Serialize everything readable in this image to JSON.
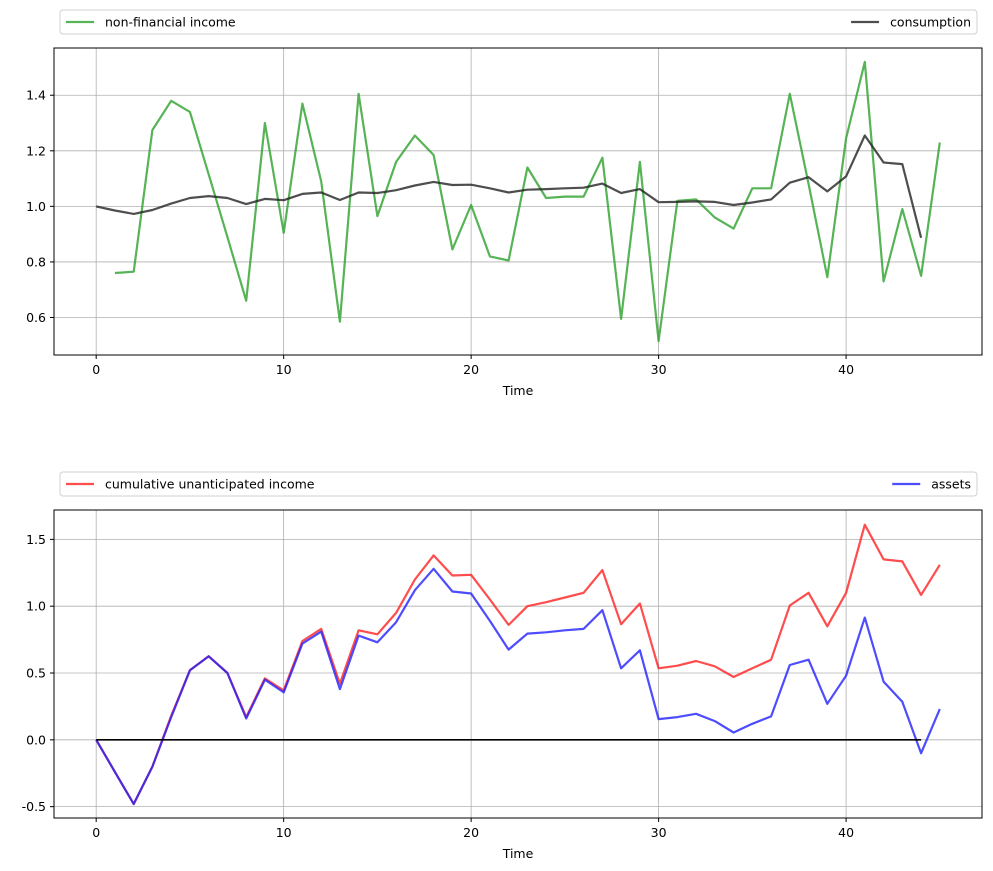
{
  "chart_data": [
    {
      "type": "line",
      "xlabel": "Time",
      "ylabel": "",
      "xlim": [
        -2.25,
        47.25
      ],
      "ylim": [
        0.465,
        1.57
      ],
      "xticks": [
        0,
        10,
        20,
        30,
        40
      ],
      "yticks": [
        0.6,
        0.8,
        1.0,
        1.2,
        1.4
      ],
      "grid": true,
      "legend_placement": "top (above axes, expanded)",
      "series": [
        {
          "name": "non-financial income",
          "color": "#2ca02c",
          "x_start": 1,
          "values": [
            0.76,
            0.765,
            1.275,
            1.38,
            1.34,
            1.115,
            0.89,
            0.66,
            1.3,
            0.905,
            1.37,
            1.09,
            0.585,
            1.405,
            0.965,
            1.16,
            1.255,
            1.185,
            0.845,
            1.005,
            0.82,
            0.805,
            1.14,
            1.03,
            1.035,
            1.035,
            1.175,
            0.595,
            1.16,
            0.515,
            1.02,
            1.025,
            0.96,
            0.92,
            1.065,
            1.065,
            1.405,
            1.08,
            0.745,
            1.245,
            1.52,
            0.73,
            0.99,
            0.75,
            1.23
          ]
        },
        {
          "name": "consumption",
          "color": "#222222",
          "x_start": 0,
          "values": [
            1.0,
            0.985,
            0.973,
            0.987,
            1.01,
            1.03,
            1.037,
            1.03,
            1.008,
            1.027,
            1.022,
            1.045,
            1.05,
            1.023,
            1.05,
            1.048,
            1.058,
            1.075,
            1.088,
            1.077,
            1.078,
            1.065,
            1.05,
            1.06,
            1.062,
            1.065,
            1.067,
            1.082,
            1.048,
            1.062,
            1.015,
            1.016,
            1.018,
            1.016,
            1.005,
            1.014,
            1.025,
            1.085,
            1.105,
            1.054,
            1.108,
            1.255,
            1.158,
            1.152,
            0.887
          ]
        }
      ]
    },
    {
      "type": "line",
      "xlabel": "Time",
      "ylabel": "",
      "xlim": [
        -2.25,
        47.25
      ],
      "ylim": [
        -0.585,
        1.72
      ],
      "xticks": [
        0,
        10,
        20,
        30,
        40
      ],
      "yticks": [
        -0.5,
        0.0,
        0.5,
        1.0,
        1.5
      ],
      "grid": true,
      "legend_placement": "top (above axes, expanded)",
      "series": [
        {
          "name": "cumulative unanticipated income",
          "color": "#ff2020",
          "x_start": 0,
          "values": [
            0,
            -0.24,
            -0.48,
            -0.2,
            0.18,
            0.52,
            0.625,
            0.5,
            0.17,
            0.46,
            0.37,
            0.74,
            0.83,
            0.42,
            0.82,
            0.79,
            0.95,
            1.2,
            1.38,
            1.23,
            1.235,
            1.05,
            0.86,
            1.0,
            1.03,
            1.065,
            1.1,
            1.27,
            0.865,
            1.02,
            0.535,
            0.555,
            0.59,
            0.55,
            0.47,
            0.535,
            0.6,
            1.005,
            1.1,
            0.85,
            1.1,
            1.61,
            1.35,
            1.335,
            1.085,
            1.31
          ]
        },
        {
          "name": "assets",
          "color": "#2020ff",
          "x_start": 0,
          "values": [
            0,
            -0.24,
            -0.48,
            -0.2,
            0.17,
            0.52,
            0.625,
            0.5,
            0.16,
            0.45,
            0.355,
            0.72,
            0.81,
            0.38,
            0.78,
            0.73,
            0.88,
            1.12,
            1.28,
            1.11,
            1.095,
            0.89,
            0.675,
            0.795,
            0.805,
            0.82,
            0.83,
            0.97,
            0.535,
            0.67,
            0.155,
            0.17,
            0.195,
            0.14,
            0.055,
            0.12,
            0.175,
            0.56,
            0.6,
            0.27,
            0.48,
            0.915,
            0.435,
            0.285,
            -0.1,
            0.23
          ]
        },
        {
          "color": "#000000",
          "x_start": 0,
          "values": [
            0,
            0,
            0,
            0,
            0,
            0,
            0,
            0,
            0,
            0,
            0,
            0,
            0,
            0,
            0,
            0,
            0,
            0,
            0,
            0,
            0,
            0,
            0,
            0,
            0,
            0,
            0,
            0,
            0,
            0,
            0,
            0,
            0,
            0,
            0,
            0,
            0,
            0,
            0,
            0,
            0,
            0,
            0,
            0,
            0
          ]
        }
      ]
    }
  ]
}
